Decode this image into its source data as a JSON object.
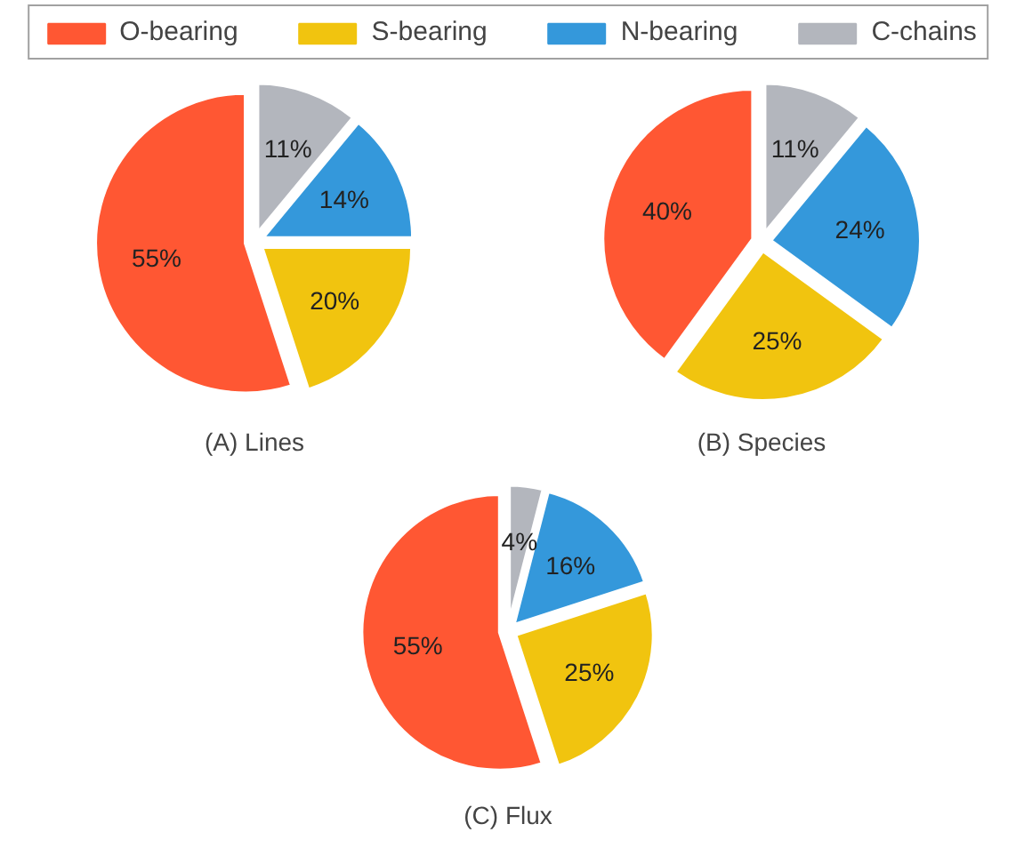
{
  "chart_data": [
    {
      "type": "pie",
      "title": "(A) Lines",
      "legend": "top",
      "categories": [
        "O-bearing",
        "S-bearing",
        "N-bearing",
        "C-chains"
      ],
      "values": [
        55,
        20,
        14,
        11
      ],
      "value_labels": [
        "55%",
        "20%",
        "14%",
        "11%"
      ],
      "colors": [
        "#ff5733",
        "#f1c40f",
        "#3498db",
        "#b3b6bd"
      ]
    },
    {
      "type": "pie",
      "title": "(B) Species",
      "categories": [
        null,
        null,
        null,
        null
      ],
      "values": [
        40,
        25,
        24,
        11
      ],
      "value_labels": [
        "40%",
        "25%",
        "24%",
        "11%"
      ],
      "colors": [
        "#ff5733",
        "#f1c40f",
        "#3498db",
        "#b3b6bd"
      ]
    },
    {
      "type": "pie",
      "title": "(C) Flux",
      "categories": [
        null,
        null,
        null,
        null
      ],
      "values": [
        55,
        25,
        16,
        4
      ],
      "value_labels": [
        "55%",
        "25%",
        "16%",
        "4%"
      ],
      "colors": [
        "#ff5733",
        "#f1c40f",
        "#3498db",
        "#b3b6bd"
      ]
    }
  ]
}
